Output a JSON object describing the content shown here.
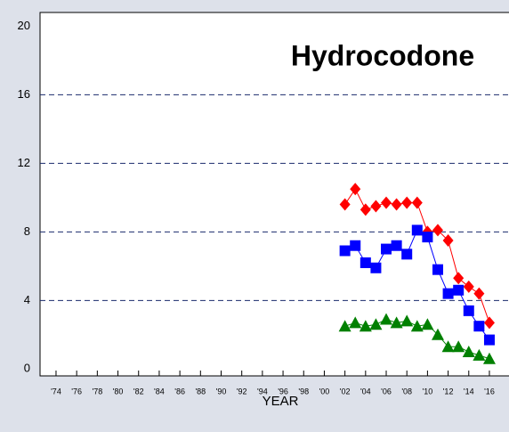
{
  "chart_data": {
    "type": "line",
    "title": "Hydrocodone",
    "x_label": "YEAR",
    "x": [
      2002,
      2003,
      2004,
      2005,
      2006,
      2007,
      2008,
      2009,
      2010,
      2011,
      2012,
      2013,
      2014,
      2015,
      2016
    ],
    "series": [
      {
        "color": "#ff0000",
        "marker": "diamond",
        "values": [
          9.6,
          10.5,
          9.3,
          9.5,
          9.7,
          9.6,
          9.7,
          9.7,
          8.0,
          8.1,
          7.5,
          5.3,
          4.8,
          4.4,
          2.7
        ]
      },
      {
        "color": "#0000ff",
        "marker": "square",
        "values": [
          6.9,
          7.2,
          6.2,
          5.9,
          7.0,
          7.2,
          6.7,
          8.1,
          7.7,
          5.8,
          4.4,
          4.6,
          3.4,
          2.5,
          1.7
        ]
      },
      {
        "color": "#008000",
        "marker": "triangle",
        "values": [
          2.5,
          2.7,
          2.5,
          2.6,
          2.9,
          2.7,
          2.8,
          2.5,
          2.6,
          2.0,
          1.3,
          1.3,
          1.0,
          0.8,
          0.6
        ]
      }
    ],
    "xlim": [
      1972.45,
      2017.9
    ],
    "ylim": [
      -0.4,
      20.8
    ],
    "yticks": [
      0,
      4,
      8,
      12,
      16,
      20
    ],
    "xticks": [
      {
        "value": 1974,
        "label": "'74"
      },
      {
        "value": 1976,
        "label": "'76"
      },
      {
        "value": 1978,
        "label": "'78"
      },
      {
        "value": 1980,
        "label": "'80"
      },
      {
        "value": 1982,
        "label": "'82"
      },
      {
        "value": 1984,
        "label": "'84"
      },
      {
        "value": 1986,
        "label": "'86"
      },
      {
        "value": 1988,
        "label": "'88"
      },
      {
        "value": 1990,
        "label": "'90"
      },
      {
        "value": 1992,
        "label": "'92"
      },
      {
        "value": 1994,
        "label": "'94"
      },
      {
        "value": 1996,
        "label": "'96"
      },
      {
        "value": 1998,
        "label": "'98"
      },
      {
        "value": 2000,
        "label": "'00"
      },
      {
        "value": 2002,
        "label": "'02"
      },
      {
        "value": 2004,
        "label": "'04"
      },
      {
        "value": 2006,
        "label": "'06"
      },
      {
        "value": 2008,
        "label": "'08"
      },
      {
        "value": 2010,
        "label": "'10"
      },
      {
        "value": 2012,
        "label": "'12"
      },
      {
        "value": 2014,
        "label": "'14"
      },
      {
        "value": 2016,
        "label": "'16"
      }
    ],
    "grid": true
  }
}
